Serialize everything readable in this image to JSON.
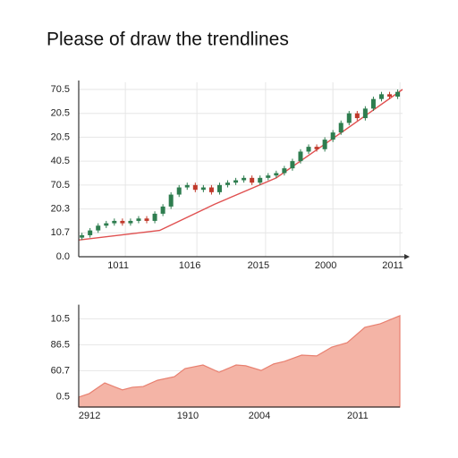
{
  "chart_data": [
    {
      "type": "candlestick",
      "title": "Please of draw the trendlines",
      "x": [
        1,
        3.5,
        6,
        8.5,
        11,
        13.5,
        16,
        18.5,
        21,
        23.5,
        26,
        28.5,
        31,
        33.5,
        36,
        38.5,
        41,
        43.5,
        46,
        48.5,
        51,
        53.5,
        56,
        58.5,
        61,
        63.5,
        66,
        68.5,
        71,
        73.5,
        76,
        78.5,
        81,
        83.5,
        86,
        88.5,
        91,
        93.5,
        96,
        98.5
      ],
      "open": [
        0.8,
        0.9,
        1.1,
        1.3,
        1.4,
        1.5,
        1.4,
        1.5,
        1.6,
        1.5,
        1.8,
        2.1,
        2.6,
        2.9,
        3.0,
        2.8,
        2.9,
        2.7,
        3.0,
        3.1,
        3.2,
        3.3,
        3.1,
        3.3,
        3.4,
        3.5,
        3.7,
        4.0,
        4.4,
        4.6,
        4.5,
        4.9,
        5.2,
        5.6,
        6.0,
        5.8,
        6.2,
        6.6,
        6.8,
        6.7
      ],
      "high": [
        1.0,
        1.2,
        1.4,
        1.5,
        1.6,
        1.6,
        1.6,
        1.7,
        1.7,
        1.9,
        2.2,
        2.7,
        3.0,
        3.1,
        3.1,
        3.0,
        3.0,
        3.1,
        3.2,
        3.3,
        3.4,
        3.4,
        3.4,
        3.5,
        3.6,
        3.8,
        4.1,
        4.5,
        4.7,
        4.7,
        5.0,
        5.3,
        5.7,
        6.1,
        6.1,
        6.3,
        6.7,
        6.9,
        6.9,
        7.0
      ],
      "low": [
        0.7,
        0.8,
        1.0,
        1.2,
        1.3,
        1.3,
        1.3,
        1.4,
        1.4,
        1.4,
        1.7,
        2.0,
        2.5,
        2.8,
        2.7,
        2.7,
        2.6,
        2.6,
        2.9,
        3.0,
        3.1,
        3.0,
        3.0,
        3.2,
        3.3,
        3.4,
        3.6,
        3.9,
        4.3,
        4.4,
        4.4,
        4.8,
        5.1,
        5.5,
        5.7,
        5.7,
        6.1,
        6.5,
        6.6,
        6.6
      ],
      "close": [
        0.9,
        1.1,
        1.3,
        1.4,
        1.5,
        1.4,
        1.5,
        1.6,
        1.5,
        1.8,
        2.1,
        2.6,
        2.9,
        3.0,
        2.8,
        2.9,
        2.7,
        3.0,
        3.1,
        3.2,
        3.3,
        3.1,
        3.3,
        3.4,
        3.5,
        3.7,
        4.0,
        4.4,
        4.6,
        4.5,
        4.9,
        5.2,
        5.6,
        6.0,
        5.8,
        6.2,
        6.6,
        6.8,
        6.7,
        6.9
      ],
      "up_color": "#2e7d4f",
      "down_color": "#c0392b",
      "trendline": {
        "x": [
          0,
          25,
          42,
          61,
          78,
          100
        ],
        "values": [
          0.7,
          1.1,
          2.2,
          3.3,
          4.9,
          7.0
        ],
        "color": "#e05050"
      },
      "xlim": [
        0,
        100
      ],
      "ylim": [
        0,
        7
      ],
      "xticks": [
        {
          "value": 14.4,
          "label": "1011"
        },
        {
          "value": 36.5,
          "label": "1016"
        },
        {
          "value": 57.7,
          "label": "2015"
        },
        {
          "value": 78.5,
          "label": "2000"
        },
        {
          "value": 99.2,
          "label": "2011"
        }
      ],
      "yticks": [
        {
          "value": 0,
          "label": "0.0"
        },
        {
          "value": 1,
          "label": "10.7"
        },
        {
          "value": 2,
          "label": "20.3"
        },
        {
          "value": 3,
          "label": "70.5"
        },
        {
          "value": 4,
          "label": "40.5"
        },
        {
          "value": 5,
          "label": "20.5"
        },
        {
          "value": 6,
          "label": "20.5"
        },
        {
          "value": 7,
          "label": "70.5"
        }
      ],
      "grid": true
    },
    {
      "type": "area",
      "x": [
        0,
        3.3,
        8.1,
        13.6,
        16.7,
        20.1,
        24.5,
        29.8,
        33.1,
        38.7,
        43.7,
        49,
        52,
        56.8,
        60.7,
        64.1,
        69.4,
        74.1,
        78.8,
        83.6,
        89.1,
        93.9,
        100
      ],
      "values": [
        0.38,
        0.52,
        0.93,
        0.66,
        0.76,
        0.79,
        1.03,
        1.17,
        1.48,
        1.62,
        1.34,
        1.62,
        1.59,
        1.41,
        1.66,
        1.76,
        2.0,
        1.97,
        2.31,
        2.48,
        3.07,
        3.21,
        3.52
      ],
      "color": "#f4b4a6",
      "line_color": "#e88070",
      "xlim": [
        0,
        100
      ],
      "ylim": [
        0,
        3.6
      ],
      "xticks": [
        {
          "value": 5.6,
          "label": "2912"
        },
        {
          "value": 36.2,
          "label": "1910"
        },
        {
          "value": 58.5,
          "label": "2004"
        },
        {
          "value": 89.1,
          "label": "2011"
        }
      ],
      "yticks": [
        {
          "value": 0.4,
          "label": "0.5"
        },
        {
          "value": 1.4,
          "label": "60.7"
        },
        {
          "value": 2.4,
          "label": "86.5"
        },
        {
          "value": 3.4,
          "label": "10.5"
        }
      ],
      "grid": true
    }
  ]
}
